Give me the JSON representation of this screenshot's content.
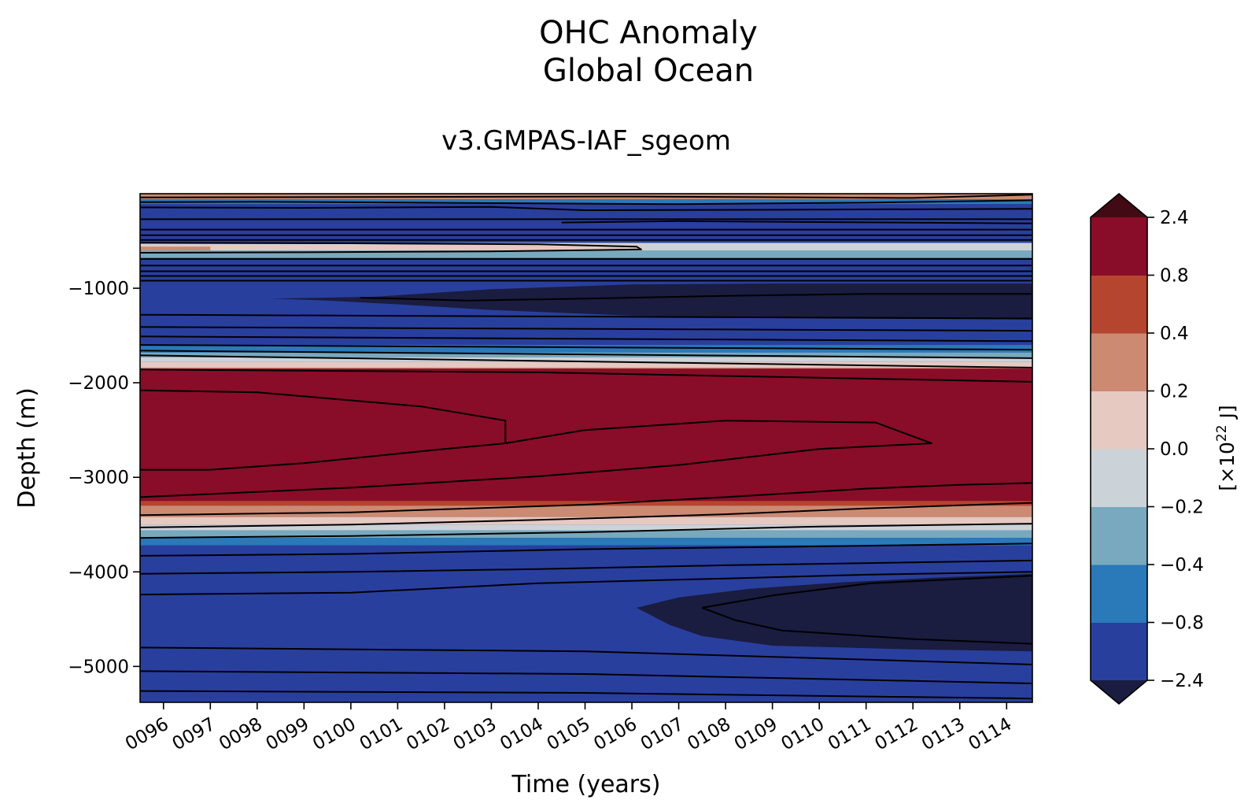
{
  "chart_data": {
    "type": "contourf",
    "title": "OHC Anomaly",
    "subtitle": "Global Ocean",
    "run_title": "v3.GMPAS-IAF_sgeom",
    "xlabel": "Time (years)",
    "ylabel": "Depth (m)",
    "xlim": [
      95.5,
      114.55
    ],
    "ylim": [
      -5380,
      0
    ],
    "x_ticks": [
      96,
      97,
      98,
      99,
      100,
      101,
      102,
      103,
      104,
      105,
      106,
      107,
      108,
      109,
      110,
      111,
      112,
      113,
      114
    ],
    "x_tick_labels": [
      "0096",
      "0097",
      "0098",
      "0099",
      "0100",
      "0101",
      "0102",
      "0103",
      "0104",
      "0105",
      "0106",
      "0107",
      "0108",
      "0109",
      "0110",
      "0111",
      "0112",
      "0113",
      "0114"
    ],
    "y_ticks": [
      -1000,
      -2000,
      -3000,
      -4000,
      -5000
    ],
    "y_tick_labels": [
      "−1000",
      "−2000",
      "−3000",
      "−4000",
      "−5000"
    ],
    "colorbar": {
      "label_prefix": "[×10",
      "label_exp": "22",
      "label_suffix": " J]",
      "levels": [
        -2.4,
        -0.8,
        -0.4,
        -0.2,
        0.0,
        0.2,
        0.4,
        0.8,
        2.4
      ],
      "tick_labels": [
        "−2.4",
        "−0.8",
        "−0.4",
        "−0.2",
        "0.0",
        "0.2",
        "0.4",
        "0.8",
        "2.4"
      ],
      "colors": [
        "#293f9e",
        "#2a79b9",
        "#78a9be",
        "#ccd3d8",
        "#e6c9c1",
        "#cc8a72",
        "#b5452f",
        "#890d28"
      ],
      "under_color": "#1a1c40",
      "over_color": "#420a14"
    },
    "bands": [
      {
        "depth_top": 0,
        "depth_bottom": -60,
        "value": 0.3,
        "x_to": 114.55
      },
      {
        "depth_top": -60,
        "depth_bottom": -110,
        "value": -0.5,
        "x_to": 114.55
      },
      {
        "depth_top": -110,
        "depth_bottom": -520,
        "value": -1.5,
        "x_to": 114.55
      },
      {
        "depth_top": -520,
        "depth_bottom": -680,
        "value": -0.1,
        "x_to": 114.55
      },
      {
        "depth_top": -540,
        "depth_bottom": -680,
        "value": 0.1,
        "x_to": 106.2
      },
      {
        "depth_top": -560,
        "depth_bottom": -660,
        "value": 0.3,
        "x_to": 97.0
      },
      {
        "depth_top": -600,
        "depth_bottom": -680,
        "value": -0.3,
        "x_to": 114.55
      },
      {
        "depth_top": -680,
        "depth_bottom": -1600,
        "value": -1.5,
        "x_to": 114.55
      },
      {
        "depth_top": -1600,
        "depth_bottom": -1680,
        "value": -0.6,
        "x_to": 114.55
      },
      {
        "depth_top": -1680,
        "depth_bottom": -1730,
        "value": -0.3,
        "x_to": 114.55
      },
      {
        "depth_top": -1730,
        "depth_bottom": -1780,
        "value": -0.1,
        "x_to": 114.55
      },
      {
        "depth_top": -1780,
        "depth_bottom": -1840,
        "value": 0.1,
        "x_to": 114.55
      },
      {
        "depth_top": -1840,
        "depth_bottom": -1920,
        "value": 0.3,
        "x_to": 114.55
      },
      {
        "depth_top": -1920,
        "depth_bottom": -3300,
        "value": 0.6,
        "x_to": 114.55
      },
      {
        "depth_top": -1850,
        "depth_bottom": -3250,
        "value": 1.6,
        "x_to": 114.55
      },
      {
        "depth_top": -3300,
        "depth_bottom": -3420,
        "value": 0.3,
        "x_to": 114.55
      },
      {
        "depth_top": -3420,
        "depth_bottom": -3500,
        "value": 0.1,
        "x_to": 114.55
      },
      {
        "depth_top": -3500,
        "depth_bottom": -3560,
        "value": -0.1,
        "x_to": 114.55
      },
      {
        "depth_top": -3560,
        "depth_bottom": -3640,
        "value": -0.3,
        "x_to": 114.55
      },
      {
        "depth_top": -3640,
        "depth_bottom": -3720,
        "value": -0.6,
        "x_to": 114.55
      },
      {
        "depth_top": -3720,
        "depth_bottom": -5380,
        "value": -1.5,
        "x_to": 114.55
      }
    ],
    "dark_regions": [
      {
        "value": -2.6,
        "outline": [
          [
            98.3,
            -1110
          ],
          [
            100.5,
            -1090
          ],
          [
            103,
            -1010
          ],
          [
            106,
            -960
          ],
          [
            109,
            -950
          ],
          [
            114.55,
            -950
          ],
          [
            114.55,
            -1330
          ],
          [
            110,
            -1320
          ],
          [
            106,
            -1290
          ],
          [
            103,
            -1230
          ],
          [
            101,
            -1170
          ],
          [
            99.5,
            -1130
          ]
        ]
      },
      {
        "value": -2.6,
        "outline": [
          [
            106.1,
            -4380
          ],
          [
            107,
            -4270
          ],
          [
            108.5,
            -4180
          ],
          [
            110.5,
            -4110
          ],
          [
            112.5,
            -4060
          ],
          [
            114.55,
            -4020
          ],
          [
            114.55,
            -4840
          ],
          [
            112,
            -4820
          ],
          [
            109,
            -4780
          ],
          [
            107.5,
            -4680
          ],
          [
            106.8,
            -4560
          ]
        ]
      }
    ],
    "contour_lines": [
      [
        [
          95.5,
          -40
        ],
        [
          100,
          -35
        ],
        [
          106,
          -30
        ],
        [
          112,
          -45
        ],
        [
          114.55,
          -10
        ]
      ],
      [
        [
          95.5,
          -90
        ],
        [
          98,
          -85
        ],
        [
          103,
          -100
        ],
        [
          107,
          -110
        ],
        [
          111,
          -95
        ],
        [
          114.55,
          -70
        ]
      ],
      [
        [
          95.5,
          -145
        ],
        [
          99,
          -150
        ],
        [
          103,
          -140
        ],
        [
          105,
          -175
        ],
        [
          109,
          -170
        ],
        [
          114.55,
          -160
        ]
      ],
      [
        [
          95.5,
          -270
        ],
        [
          114.55,
          -270
        ]
      ],
      [
        [
          104.5,
          -305
        ],
        [
          107,
          -290
        ],
        [
          110,
          -300
        ],
        [
          114.55,
          -315
        ]
      ],
      [
        [
          95.5,
          -380
        ],
        [
          114.55,
          -380
        ]
      ],
      [
        [
          95.5,
          -440
        ],
        [
          114.55,
          -440
        ]
      ],
      [
        [
          95.5,
          -490
        ],
        [
          114.55,
          -490
        ]
      ],
      [
        [
          95.5,
          -520
        ],
        [
          100,
          -525
        ],
        [
          104,
          -535
        ],
        [
          106.1,
          -560
        ],
        [
          106.2,
          -590
        ],
        [
          103,
          -610
        ],
        [
          99,
          -620
        ],
        [
          95.5,
          -625
        ]
      ],
      [
        [
          95.5,
          -690
        ],
        [
          114.55,
          -690
        ]
      ],
      [
        [
          95.5,
          -760
        ],
        [
          114.55,
          -760
        ]
      ],
      [
        [
          95.5,
          -820
        ],
        [
          114.55,
          -820
        ]
      ],
      [
        [
          95.5,
          -870
        ],
        [
          114.55,
          -870
        ]
      ],
      [
        [
          95.5,
          -920
        ],
        [
          114.55,
          -920
        ]
      ],
      [
        [
          100.2,
          -1100
        ],
        [
          101,
          -1110
        ],
        [
          102.5,
          -1130
        ],
        [
          105,
          -1110
        ],
        [
          108,
          -1080
        ],
        [
          111,
          -1060
        ],
        [
          114.55,
          -1060
        ]
      ],
      [
        [
          95.5,
          -1280
        ],
        [
          114.55,
          -1320
        ]
      ],
      [
        [
          95.5,
          -1410
        ],
        [
          114.55,
          -1450
        ]
      ],
      [
        [
          95.5,
          -1510
        ],
        [
          114.55,
          -1560
        ]
      ],
      [
        [
          95.5,
          -1600
        ],
        [
          114.55,
          -1650
        ]
      ],
      [
        [
          95.5,
          -1660
        ],
        [
          114.55,
          -1740
        ]
      ],
      [
        [
          95.5,
          -1710
        ],
        [
          114.55,
          -1840
        ]
      ],
      [
        [
          95.5,
          -1860
        ],
        [
          104,
          -1890
        ],
        [
          114.55,
          -1990
        ]
      ],
      [
        [
          95.5,
          -2080
        ],
        [
          98,
          -2100
        ],
        [
          101.5,
          -2250
        ],
        [
          103.3,
          -2400
        ],
        [
          103.3,
          -2640
        ],
        [
          102,
          -2700
        ],
        [
          99,
          -2850
        ],
        [
          97,
          -2920
        ],
        [
          95.5,
          -2920
        ]
      ],
      [
        [
          103.3,
          -2640
        ],
        [
          105,
          -2500
        ],
        [
          108,
          -2400
        ],
        [
          111.2,
          -2420
        ],
        [
          112.4,
          -2640
        ],
        [
          110,
          -2700
        ],
        [
          107,
          -2870
        ],
        [
          104,
          -2990
        ],
        [
          100,
          -3110
        ],
        [
          95.5,
          -3210
        ]
      ],
      [
        [
          95.5,
          -3400
        ],
        [
          100,
          -3370
        ],
        [
          105,
          -3290
        ],
        [
          108,
          -3210
        ],
        [
          111,
          -3120
        ],
        [
          113,
          -3080
        ],
        [
          114.55,
          -3060
        ]
      ],
      [
        [
          95.5,
          -3530
        ],
        [
          100,
          -3500
        ],
        [
          104,
          -3450
        ],
        [
          108,
          -3390
        ],
        [
          111,
          -3330
        ],
        [
          114.55,
          -3270
        ]
      ],
      [
        [
          95.5,
          -3640
        ],
        [
          100,
          -3620
        ],
        [
          105,
          -3580
        ],
        [
          110,
          -3520
        ],
        [
          114.55,
          -3490
        ]
      ],
      [
        [
          95.5,
          -3830
        ],
        [
          100,
          -3810
        ],
        [
          105,
          -3760
        ],
        [
          110,
          -3730
        ],
        [
          114.55,
          -3700
        ]
      ],
      [
        [
          95.5,
          -4020
        ],
        [
          100,
          -4000
        ],
        [
          104,
          -3970
        ],
        [
          108,
          -3930
        ],
        [
          114.55,
          -3880
        ]
      ],
      [
        [
          95.5,
          -4240
        ],
        [
          100,
          -4220
        ],
        [
          104,
          -4120
        ],
        [
          108,
          -4070
        ],
        [
          111,
          -4030
        ],
        [
          114.55,
          -4000
        ]
      ],
      [
        [
          107.5,
          -4380
        ],
        [
          109,
          -4250
        ],
        [
          111.1,
          -4120
        ],
        [
          114.55,
          -4040
        ]
      ],
      [
        [
          107.5,
          -4380
        ],
        [
          108.2,
          -4510
        ],
        [
          109.2,
          -4620
        ],
        [
          112,
          -4710
        ],
        [
          114.55,
          -4760
        ]
      ],
      [
        [
          95.5,
          -4800
        ],
        [
          105,
          -4840
        ],
        [
          114.55,
          -4980
        ]
      ],
      [
        [
          95.5,
          -5050
        ],
        [
          105,
          -5080
        ],
        [
          114.55,
          -5180
        ]
      ],
      [
        [
          95.5,
          -5260
        ],
        [
          105,
          -5280
        ],
        [
          114.55,
          -5340
        ]
      ]
    ]
  }
}
